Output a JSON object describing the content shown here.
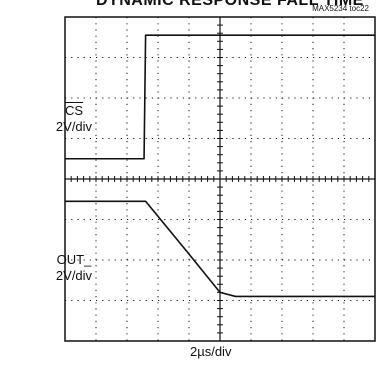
{
  "title": "DYNAMIC RESPONSE FALL TIME",
  "tag": "MAX5234 toc22",
  "chart_data": {
    "type": "line",
    "xlabel": "2µs/div",
    "grid": true,
    "x_divisions": 10,
    "y_divisions": 8,
    "series": [
      {
        "name": "CS",
        "scale": "2V/div",
        "points": [
          [
            0,
            4.5
          ],
          [
            2.55,
            4.5
          ],
          [
            2.6,
            7.55
          ],
          [
            10,
            7.55
          ]
        ]
      },
      {
        "name": "OUT_",
        "scale": "2V/div",
        "points": [
          [
            0,
            3.45
          ],
          [
            2.6,
            3.45
          ],
          [
            4.05,
            2.1
          ],
          [
            5.0,
            1.2
          ],
          [
            5.5,
            1.1
          ],
          [
            10,
            1.1
          ]
        ]
      }
    ],
    "trace_color": "#111111",
    "grid_color": "#111111"
  }
}
